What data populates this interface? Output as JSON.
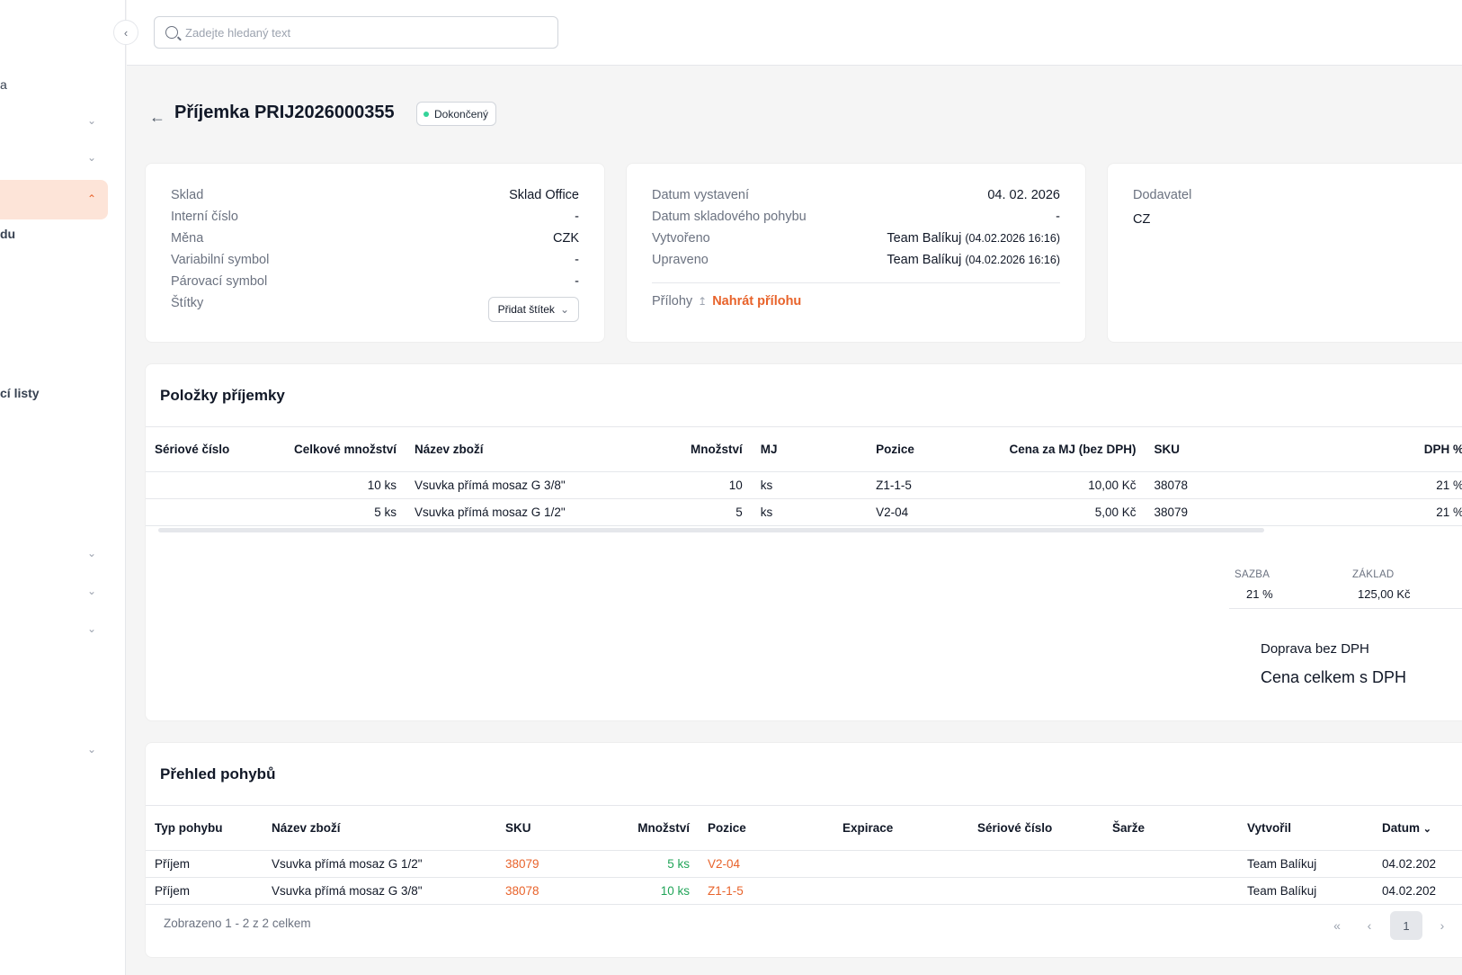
{
  "sidebar": {
    "items": [
      {
        "label": "a"
      },
      {
        "label": "du"
      },
      {
        "label": "cí listy"
      }
    ]
  },
  "search": {
    "placeholder": "Zadejte hledaný text"
  },
  "header": {
    "title": "Příjemka PRIJ2026000355",
    "status": "Dokončený"
  },
  "info1": {
    "rows": [
      {
        "label": "Sklad",
        "value": "Sklad Office"
      },
      {
        "label": "Interní číslo",
        "value": "-"
      },
      {
        "label": "Měna",
        "value": "CZK"
      },
      {
        "label": "Variabilní symbol",
        "value": "-"
      },
      {
        "label": "Párovací symbol",
        "value": "-"
      },
      {
        "label": "Štítky",
        "value": ""
      }
    ],
    "add_tag": "Přidat štítek"
  },
  "info2": {
    "rows": [
      {
        "label": "Datum vystavení",
        "value": "04. 02. 2026",
        "sub": ""
      },
      {
        "label": "Datum skladového pohybu",
        "value": "-",
        "sub": ""
      },
      {
        "label": "Vytvořeno",
        "value": "Team Balíkuj",
        "sub": "(04.02.2026 16:16)"
      },
      {
        "label": "Upraveno",
        "value": "Team Balíkuj",
        "sub": "(04.02.2026 16:16)"
      }
    ],
    "attachments_label": "Přílohy",
    "upload_label": "Nahrát přílohu"
  },
  "info3": {
    "label": "Dodavatel",
    "value": "CZ"
  },
  "items": {
    "title": "Položky příjemky",
    "columns": [
      "Sériové číslo",
      "Celkové množství",
      "Název zboží",
      "Množství",
      "MJ",
      "Pozice",
      "Cena za MJ (bez DPH)",
      "SKU",
      "DPH %"
    ],
    "rows": [
      [
        "",
        "10 ks",
        "Vsuvka přímá mosaz G 3/8\"",
        "10",
        "ks",
        "Z1-1-5",
        "10,00 Kč",
        "38078",
        "21 %"
      ],
      [
        "",
        "5 ks",
        "Vsuvka přímá mosaz G 1/2\"",
        "5",
        "ks",
        "V2-04",
        "5,00 Kč",
        "38079",
        "21 %"
      ]
    ]
  },
  "vat": {
    "rate_head": "SAZBA",
    "base_head": "ZÁKLAD",
    "rate": "21 %",
    "base": "125,00 Kč",
    "shipping_label": "Doprava bez DPH",
    "total_label": "Cena celkem s DPH"
  },
  "movements": {
    "title": "Přehled pohybů",
    "columns": [
      "Typ pohybu",
      "Název zboží",
      "SKU",
      "Množství",
      "Pozice",
      "Expirace",
      "Sériové číslo",
      "Šarže",
      "Vytvořil",
      "Datum"
    ],
    "rows": [
      [
        "Příjem",
        "Vsuvka přímá mosaz G 1/2\"",
        "38079",
        "5 ks",
        "V2-04",
        "",
        "",
        "",
        "Team Balíkuj",
        "04.02.202"
      ],
      [
        "Příjem",
        "Vsuvka přímá mosaz G 3/8\"",
        "38078",
        "10 ks",
        "Z1-1-5",
        "",
        "",
        "",
        "Team Balíkuj",
        "04.02.202"
      ]
    ],
    "summary": "Zobrazeno 1 - 2 z 2 celkem",
    "current_page": "1"
  },
  "colors": {
    "accent": "#e8632b",
    "success": "#22a559",
    "active_bg": "#fde4d8"
  }
}
